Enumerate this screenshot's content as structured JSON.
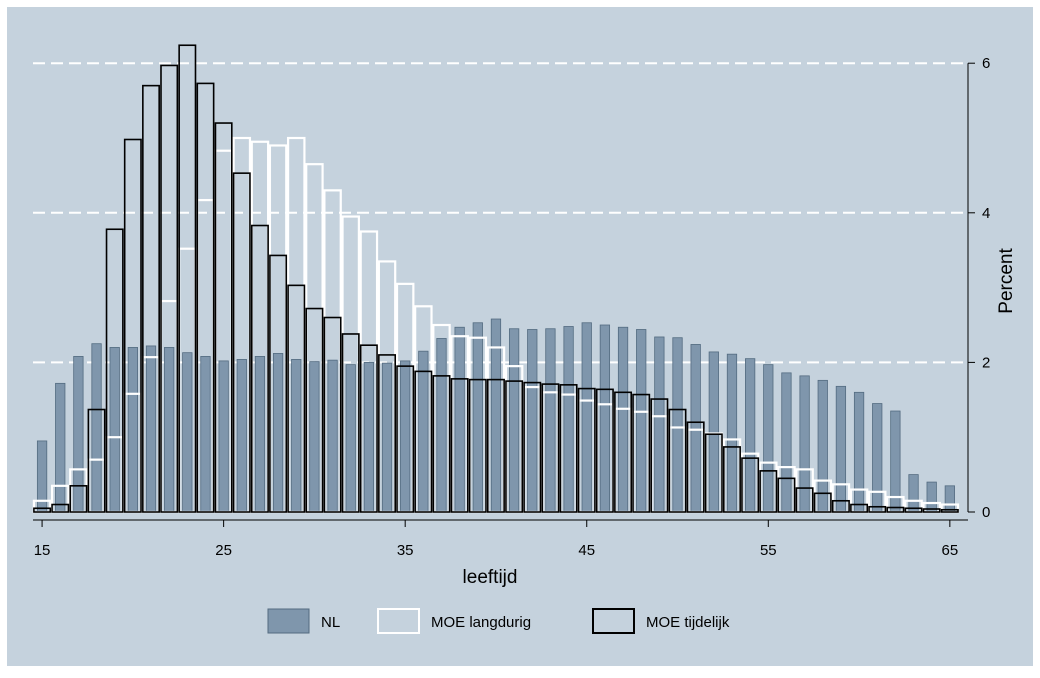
{
  "chart_data": {
    "type": "bar",
    "title": "",
    "xlabel": "leeftijd",
    "ylabel": "Percent",
    "xlim": [
      14.5,
      66
    ],
    "ylim": [
      0,
      6.3
    ],
    "x_ticks": [
      15,
      25,
      35,
      45,
      55,
      65
    ],
    "y_ticks": [
      0,
      2,
      4,
      6
    ],
    "grid": true,
    "legend_position": "bottom",
    "colors": {
      "background": "#c5d2dd",
      "nl_fill": "#7f96ac",
      "nl_stroke": "#536b80",
      "moe_langdurig": "#ffffff",
      "moe_tijdelijk": "#000000",
      "gridline": "#ffffff"
    },
    "x": [
      15,
      16,
      17,
      18,
      19,
      20,
      21,
      22,
      23,
      24,
      25,
      26,
      27,
      28,
      29,
      30,
      31,
      32,
      33,
      34,
      35,
      36,
      37,
      38,
      39,
      40,
      41,
      42,
      43,
      44,
      45,
      46,
      47,
      48,
      49,
      50,
      51,
      52,
      53,
      54,
      55,
      56,
      57,
      58,
      59,
      60,
      61,
      62,
      63,
      64,
      65
    ],
    "series": [
      {
        "name": "NL",
        "style": "filled",
        "values": [
          0.95,
          1.72,
          2.08,
          2.25,
          2.2,
          2.2,
          2.22,
          2.2,
          2.13,
          2.08,
          2.02,
          2.04,
          2.08,
          2.12,
          2.04,
          2.01,
          2.03,
          1.97,
          2.0,
          1.99,
          2.02,
          2.15,
          2.32,
          2.47,
          2.53,
          2.58,
          2.45,
          2.44,
          2.45,
          2.48,
          2.53,
          2.5,
          2.47,
          2.44,
          2.34,
          2.33,
          2.24,
          2.14,
          2.11,
          2.05,
          1.97,
          1.86,
          1.82,
          1.76,
          1.68,
          1.6,
          1.45,
          1.35,
          0.5,
          0.4,
          0.35
        ]
      },
      {
        "name": "MOE langdurig",
        "style": "outline",
        "values": [
          0.15,
          0.35,
          0.57,
          0.7,
          1.0,
          1.58,
          2.07,
          2.82,
          3.52,
          4.17,
          4.83,
          5.0,
          4.95,
          4.9,
          5.0,
          4.65,
          4.3,
          3.95,
          3.75,
          3.35,
          3.05,
          2.75,
          2.5,
          2.35,
          2.33,
          2.2,
          1.95,
          1.67,
          1.6,
          1.57,
          1.49,
          1.44,
          1.38,
          1.34,
          1.28,
          1.13,
          1.1,
          1.05,
          0.97,
          0.78,
          0.66,
          0.6,
          0.57,
          0.42,
          0.37,
          0.3,
          0.27,
          0.2,
          0.15,
          0.12,
          0.1
        ]
      },
      {
        "name": "MOE tijdelijk",
        "style": "outline",
        "values": [
          0.05,
          0.1,
          0.35,
          1.37,
          3.78,
          4.98,
          5.7,
          5.97,
          6.24,
          5.73,
          5.2,
          4.53,
          3.83,
          3.43,
          3.03,
          2.72,
          2.6,
          2.38,
          2.23,
          2.1,
          1.95,
          1.88,
          1.82,
          1.78,
          1.77,
          1.77,
          1.75,
          1.73,
          1.71,
          1.7,
          1.65,
          1.64,
          1.6,
          1.57,
          1.51,
          1.37,
          1.2,
          1.04,
          0.87,
          0.72,
          0.55,
          0.45,
          0.32,
          0.25,
          0.15,
          0.1,
          0.07,
          0.06,
          0.05,
          0.04,
          0.03
        ]
      }
    ]
  }
}
